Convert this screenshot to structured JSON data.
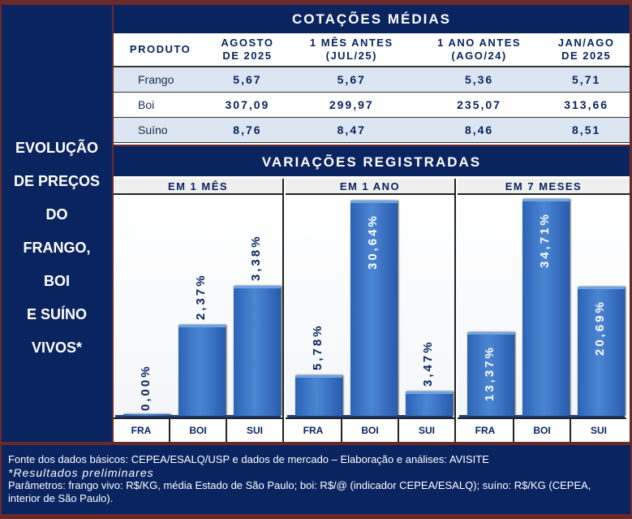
{
  "left_title": [
    "EVOLUÇÃO",
    "DE PREÇOS",
    "DO",
    "FRANGO,",
    "BOI",
    "E SUÍNO",
    "VIVOS*"
  ],
  "table": {
    "title": "COTAÇÕES MÉDIAS",
    "headers": [
      [
        "PRODUTO"
      ],
      [
        "AGOSTO",
        "DE 2025"
      ],
      [
        "1 MÊS ANTES",
        "(JUL/25)"
      ],
      [
        "1 ANO ANTES",
        "(AGO/24)"
      ],
      [
        "JAN/AGO",
        "DE 2025"
      ]
    ],
    "rows": [
      [
        "Frango",
        "5,67",
        "5,67",
        "5,36",
        "5,71"
      ],
      [
        "Boi",
        "307,09",
        "299,97",
        "235,07",
        "313,66"
      ],
      [
        "Suíno",
        "8,76",
        "8,47",
        "8,46",
        "8,51"
      ]
    ]
  },
  "variations_title": "VARIAÇÕES REGISTRADAS",
  "chart_data": [
    {
      "type": "bar",
      "title": "EM 1 MÊS",
      "categories": [
        "FRA",
        "BOI",
        "SUI"
      ],
      "values": [
        0.0,
        2.37,
        3.38
      ],
      "labels": [
        "0,00%",
        "2,37%",
        "3,38%"
      ],
      "label_pos": [
        "outside",
        "outside",
        "outside"
      ],
      "ylim": [
        0,
        5.65
      ]
    },
    {
      "type": "bar",
      "title": "EM 1 ANO",
      "categories": [
        "FRA",
        "BOI",
        "SUI"
      ],
      "values": [
        5.78,
        30.64,
        3.47
      ],
      "labels": [
        "5,78%",
        "30,64%",
        "3,47%"
      ],
      "label_pos": [
        "outside",
        "inside",
        "outside"
      ],
      "ylim": [
        0,
        31
      ]
    },
    {
      "type": "bar",
      "title": "EM 7 MESES",
      "categories": [
        "FRA",
        "BOI",
        "SUI"
      ],
      "values": [
        13.37,
        34.71,
        20.69
      ],
      "labels": [
        "13,37%",
        "34,71%",
        "20,69%"
      ],
      "label_pos": [
        "inside",
        "inside",
        "inside"
      ],
      "ylim": [
        0,
        34.8
      ]
    }
  ],
  "footer": {
    "source": "Fonte dos dados básicos: CEPEA/ESALQ/USP e dados de mercado – Elaboração e análises: AVISITE",
    "note": "*Resultados preliminares",
    "params": "Parâmetros: frango vivo: R$/KG, média Estado de São Paulo; boi: R$/@ (indicador CEPEA/ESALQ); suíno: R$/KG (CEPEA, interior de São Paulo)."
  },
  "colors": {
    "navy": "#0a2460",
    "bar": "#3a75c8",
    "row_alt": "#dce6f3"
  }
}
